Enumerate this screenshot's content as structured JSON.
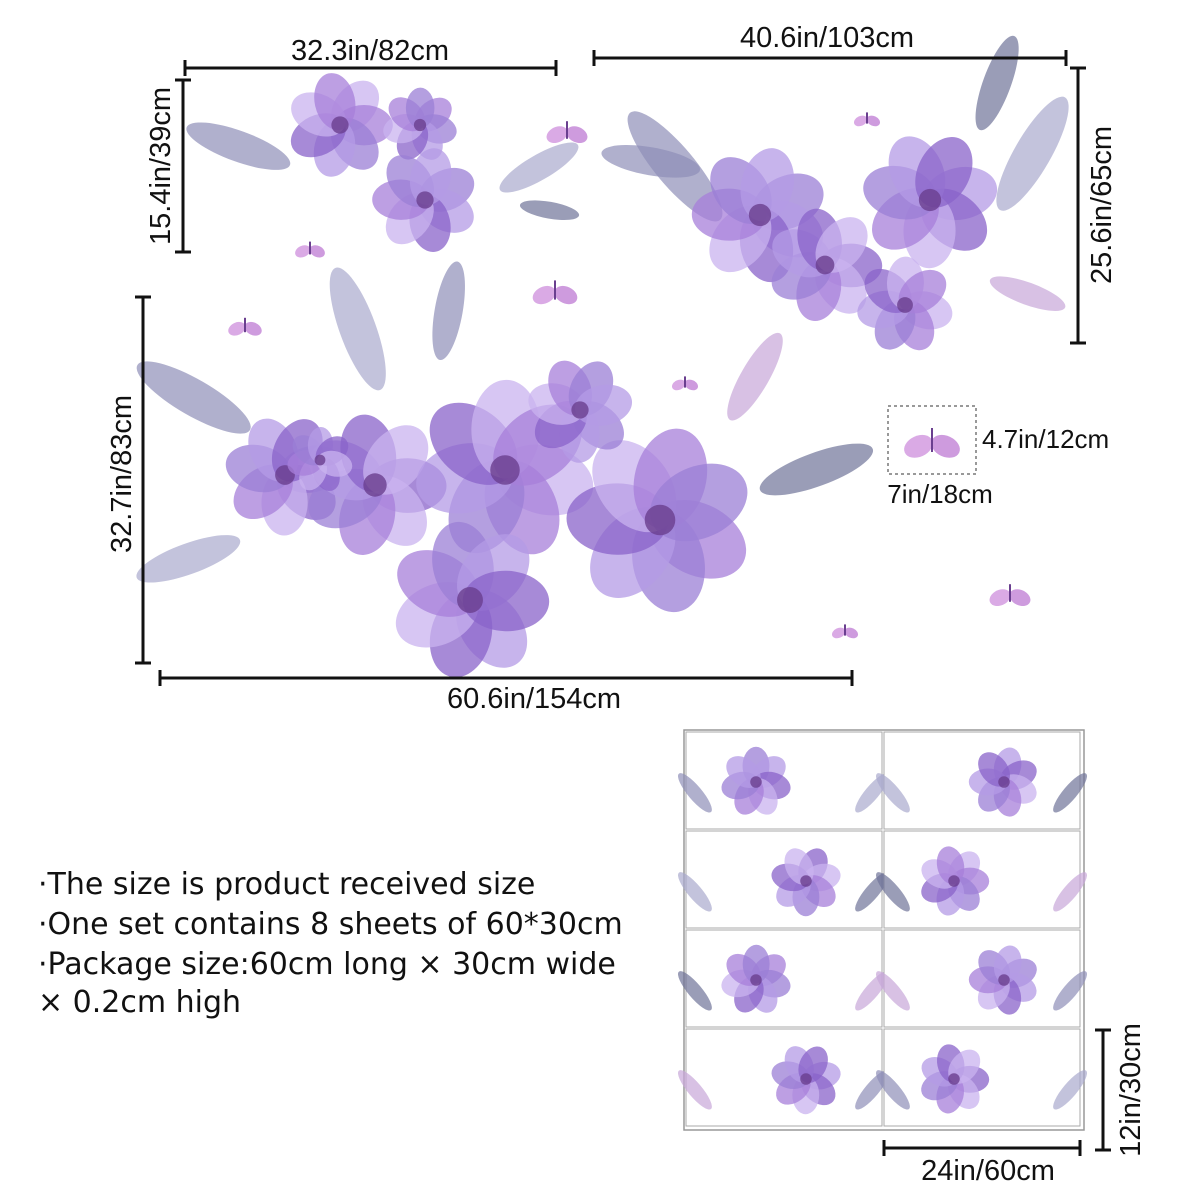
{
  "dimensions": {
    "small_width": "32.3in/82cm",
    "small_height": "15.4in/39cm",
    "medium_width": "40.6in/103cm",
    "medium_height": "25.6in/65cm",
    "large_height": "32.7in/83cm",
    "large_width": "60.6in/154cm",
    "butterfly_height": "4.7in/12cm",
    "butterfly_width": "7in/18cm",
    "sheet_width": "24in/60cm",
    "sheet_height": "12in/30cm"
  },
  "notes": [
    "·The size is product received size",
    "·One set contains 8 sheets of 60*30cm",
    "·Package size:60cm long × 30cm wide",
    "× 0.2cm high"
  ]
}
